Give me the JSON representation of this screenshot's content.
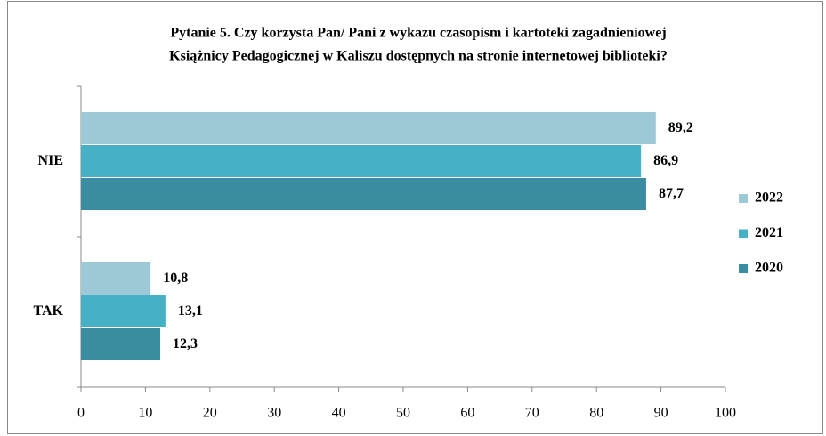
{
  "chart_data": {
    "type": "bar",
    "orientation": "horizontal",
    "title": [
      "Pytanie 5. Czy korzysta Pan/ Pani z wykazu czasopism i  kartoteki zagadnieniowej",
      "Książnicy Pedagogicznej w Kaliszu dostępnych  na stronie internetowej biblioteki?"
    ],
    "categories": [
      "NIE",
      "TAK"
    ],
    "series": [
      {
        "name": "2022",
        "color": "#9dc9d6",
        "values": [
          89.2,
          10.8
        ],
        "value_labels": [
          "89,2",
          "10,8"
        ]
      },
      {
        "name": "2021",
        "color": "#46b0c6",
        "values": [
          86.9,
          13.1
        ],
        "value_labels": [
          "86,9",
          "13,1"
        ]
      },
      {
        "name": "2020",
        "color": "#3a8ca1",
        "values": [
          87.7,
          12.3
        ],
        "value_labels": [
          "87,7",
          "12,3"
        ]
      }
    ],
    "xlim": [
      0,
      100
    ],
    "xticks": [
      0,
      10,
      20,
      30,
      40,
      50,
      60,
      70,
      80,
      90,
      100
    ],
    "legend": "right"
  }
}
